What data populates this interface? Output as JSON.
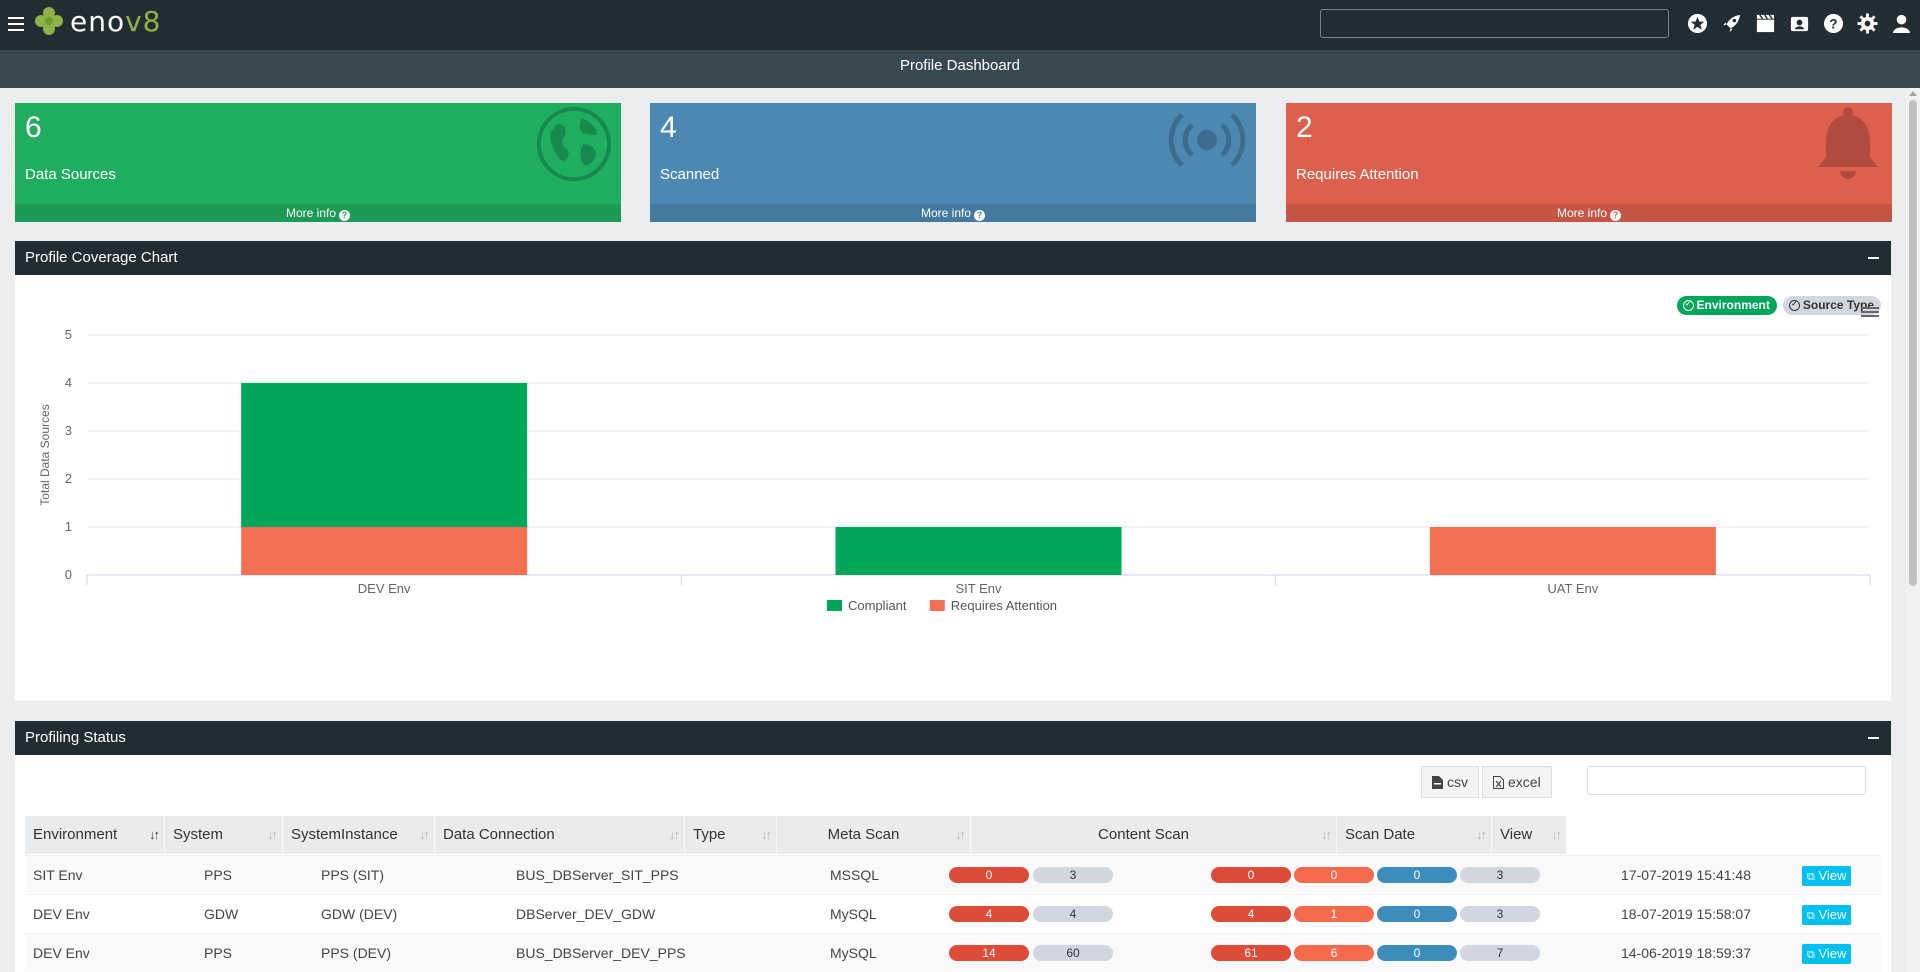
{
  "app": {
    "logo_text_a": "eno",
    "logo_text_b": "v8"
  },
  "page": {
    "title": "Profile Dashboard"
  },
  "top_icons": [
    "star-icon",
    "rocket-icon",
    "clapperboard-icon",
    "contacts-icon",
    "help-icon",
    "gear-icon",
    "user-icon"
  ],
  "info_boxes": [
    {
      "count": "6",
      "label": "Data Sources",
      "footer": "More info",
      "color": "#1fad60",
      "icon": "globe-icon"
    },
    {
      "count": "4",
      "label": "Scanned",
      "footer": "More info",
      "color": "#4d88b3",
      "icon": "broadcast-icon"
    },
    {
      "count": "2",
      "label": "Requires Attention",
      "footer": "More info",
      "color": "#dd5f4e",
      "icon": "bell-icon"
    }
  ],
  "chart_panel": {
    "title": "Profile Coverage Chart",
    "toggle_environment": "Environment",
    "toggle_source_type": "Source Type"
  },
  "chart_data": {
    "type": "bar",
    "stacked": true,
    "categories": [
      "DEV Env",
      "SIT Env",
      "UAT Env"
    ],
    "series": [
      {
        "name": "Compliant",
        "values": [
          3,
          1,
          0
        ],
        "color": "#00a65a"
      },
      {
        "name": "Requires Attention",
        "values": [
          1,
          0,
          1
        ],
        "color": "#f36f51"
      }
    ],
    "ylabel": "Total Data Sources",
    "ylim": [
      0,
      5
    ],
    "yticks": [
      0,
      1,
      2,
      3,
      4,
      5
    ],
    "grid": true,
    "legend": "bottom-center"
  },
  "status_panel": {
    "title": "Profiling Status",
    "csv_label": "csv",
    "excel_label": "excel",
    "columns": [
      "Environment",
      "System",
      "SystemInstance",
      "Data Connection",
      "Type",
      "Meta Scan",
      "Content Scan",
      "Scan Date",
      "View"
    ],
    "rows": [
      {
        "environment": "SIT Env",
        "system": "PPS",
        "instance": "PPS (SIT)",
        "connection": "BUS_DBServer_SIT_PPS",
        "type": "MSSQL",
        "meta": [
          "0",
          "3"
        ],
        "content": [
          "0",
          "0",
          "0",
          "3"
        ],
        "date": "17-07-2019 15:41:48",
        "view": "View"
      },
      {
        "environment": "DEV Env",
        "system": "GDW",
        "instance": "GDW (DEV)",
        "connection": "DBServer_DEV_GDW",
        "type": "MySQL",
        "meta": [
          "4",
          "4"
        ],
        "content": [
          "4",
          "1",
          "0",
          "3"
        ],
        "date": "18-07-2019 15:58:07",
        "view": "View"
      },
      {
        "environment": "DEV Env",
        "system": "PPS",
        "instance": "PPS (DEV)",
        "connection": "BUS_DBServer_DEV_PPS",
        "type": "MySQL",
        "meta": [
          "14",
          "60"
        ],
        "content": [
          "61",
          "6",
          "0",
          "7"
        ],
        "date": "14-06-2019 18:59:37",
        "view": "View"
      }
    ]
  }
}
